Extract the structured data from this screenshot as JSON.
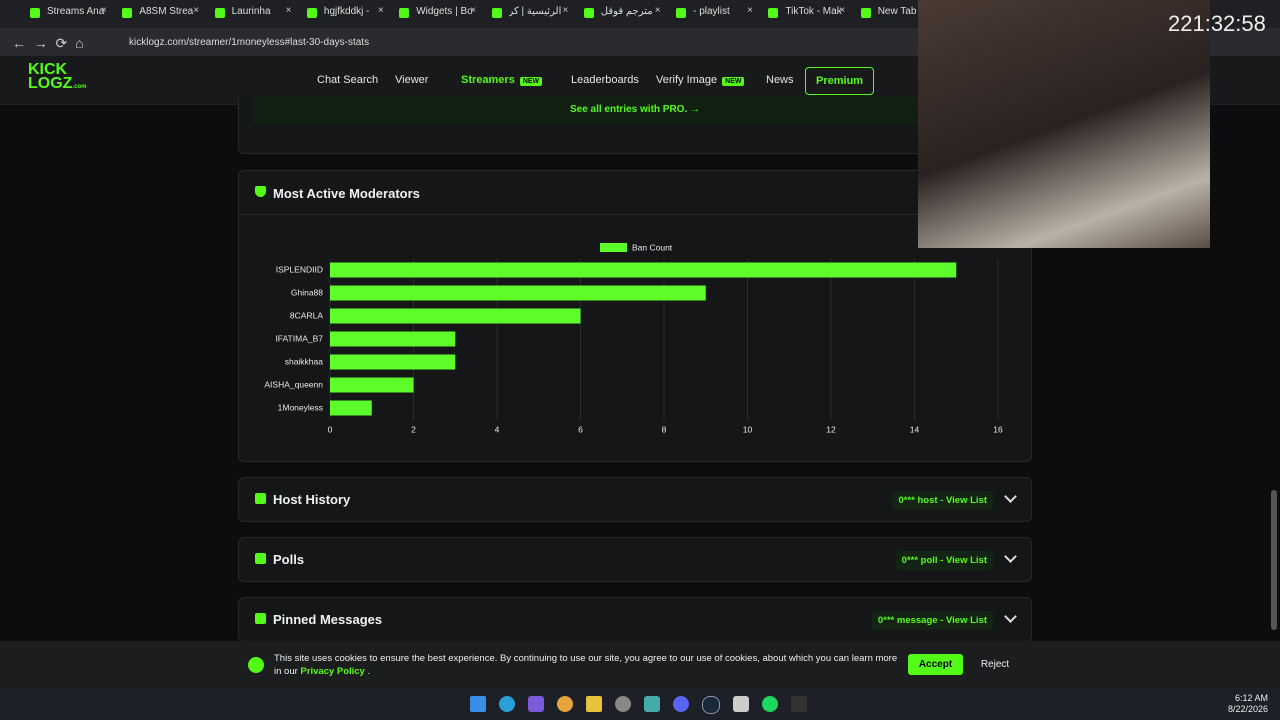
{
  "browser": {
    "tabs": [
      "Streams Ana",
      "A8SM Strea",
      "Laurinha",
      "hgjfkddkj - ",
      "Widgets | Bo",
      "الرئيسية | كر",
      "مترجم قوقل",
      "- playlist",
      "TikTok - Mak",
      "New Tab"
    ],
    "url": "kicklogz.com/streamer/1moneyless#last-30-days-stats"
  },
  "clock": "221:32:58",
  "site": {
    "logo": {
      "line1": "KICK",
      "line2": "LOGZ",
      "suffix": ".com"
    },
    "nav": [
      {
        "label": "Chat Search"
      },
      {
        "label": "Viewer"
      },
      {
        "label": "Streamers",
        "badge": "NEW"
      },
      {
        "label": "Leaderboards"
      },
      {
        "label": "Verify Image",
        "badge": "NEW"
      },
      {
        "label": "News"
      },
      {
        "label": "Premium"
      }
    ],
    "pro_link": "See all entries with PRO."
  },
  "chart_data": {
    "type": "bar",
    "orientation": "horizontal",
    "title": "Most Active Moderators",
    "categories": [
      "ISPLENDIID",
      "Ghina88",
      "8CARLA",
      "IFATIMA_B7",
      "shaikkhaa",
      "AISHA_queenn",
      "1Moneyless"
    ],
    "series": [
      {
        "name": "Ban Count",
        "color": "#5dfc2a",
        "values": [
          15,
          9,
          6,
          3,
          3,
          2,
          1
        ]
      }
    ],
    "xlim": [
      0,
      16
    ],
    "xticks": [
      0,
      2,
      4,
      6,
      8,
      10,
      12,
      14,
      16
    ],
    "grid": true,
    "legend": "top"
  },
  "sections": [
    {
      "title": "Host History",
      "action": "0*** host - View List"
    },
    {
      "title": "Polls",
      "action": "0*** poll - View List"
    },
    {
      "title": "Pinned Messages",
      "action": "0*** message - View List"
    }
  ],
  "cookie": {
    "text": "This site uses cookies to ensure the best experience. By continuing to use our site, you agree to our use of cookies, about which you can learn more in our",
    "link": "Privacy Policy",
    "end": ".",
    "accept": "Accept",
    "reject": "Reject"
  },
  "taskbar": {
    "time": "6:12 AM",
    "date": "8/22/2026"
  }
}
